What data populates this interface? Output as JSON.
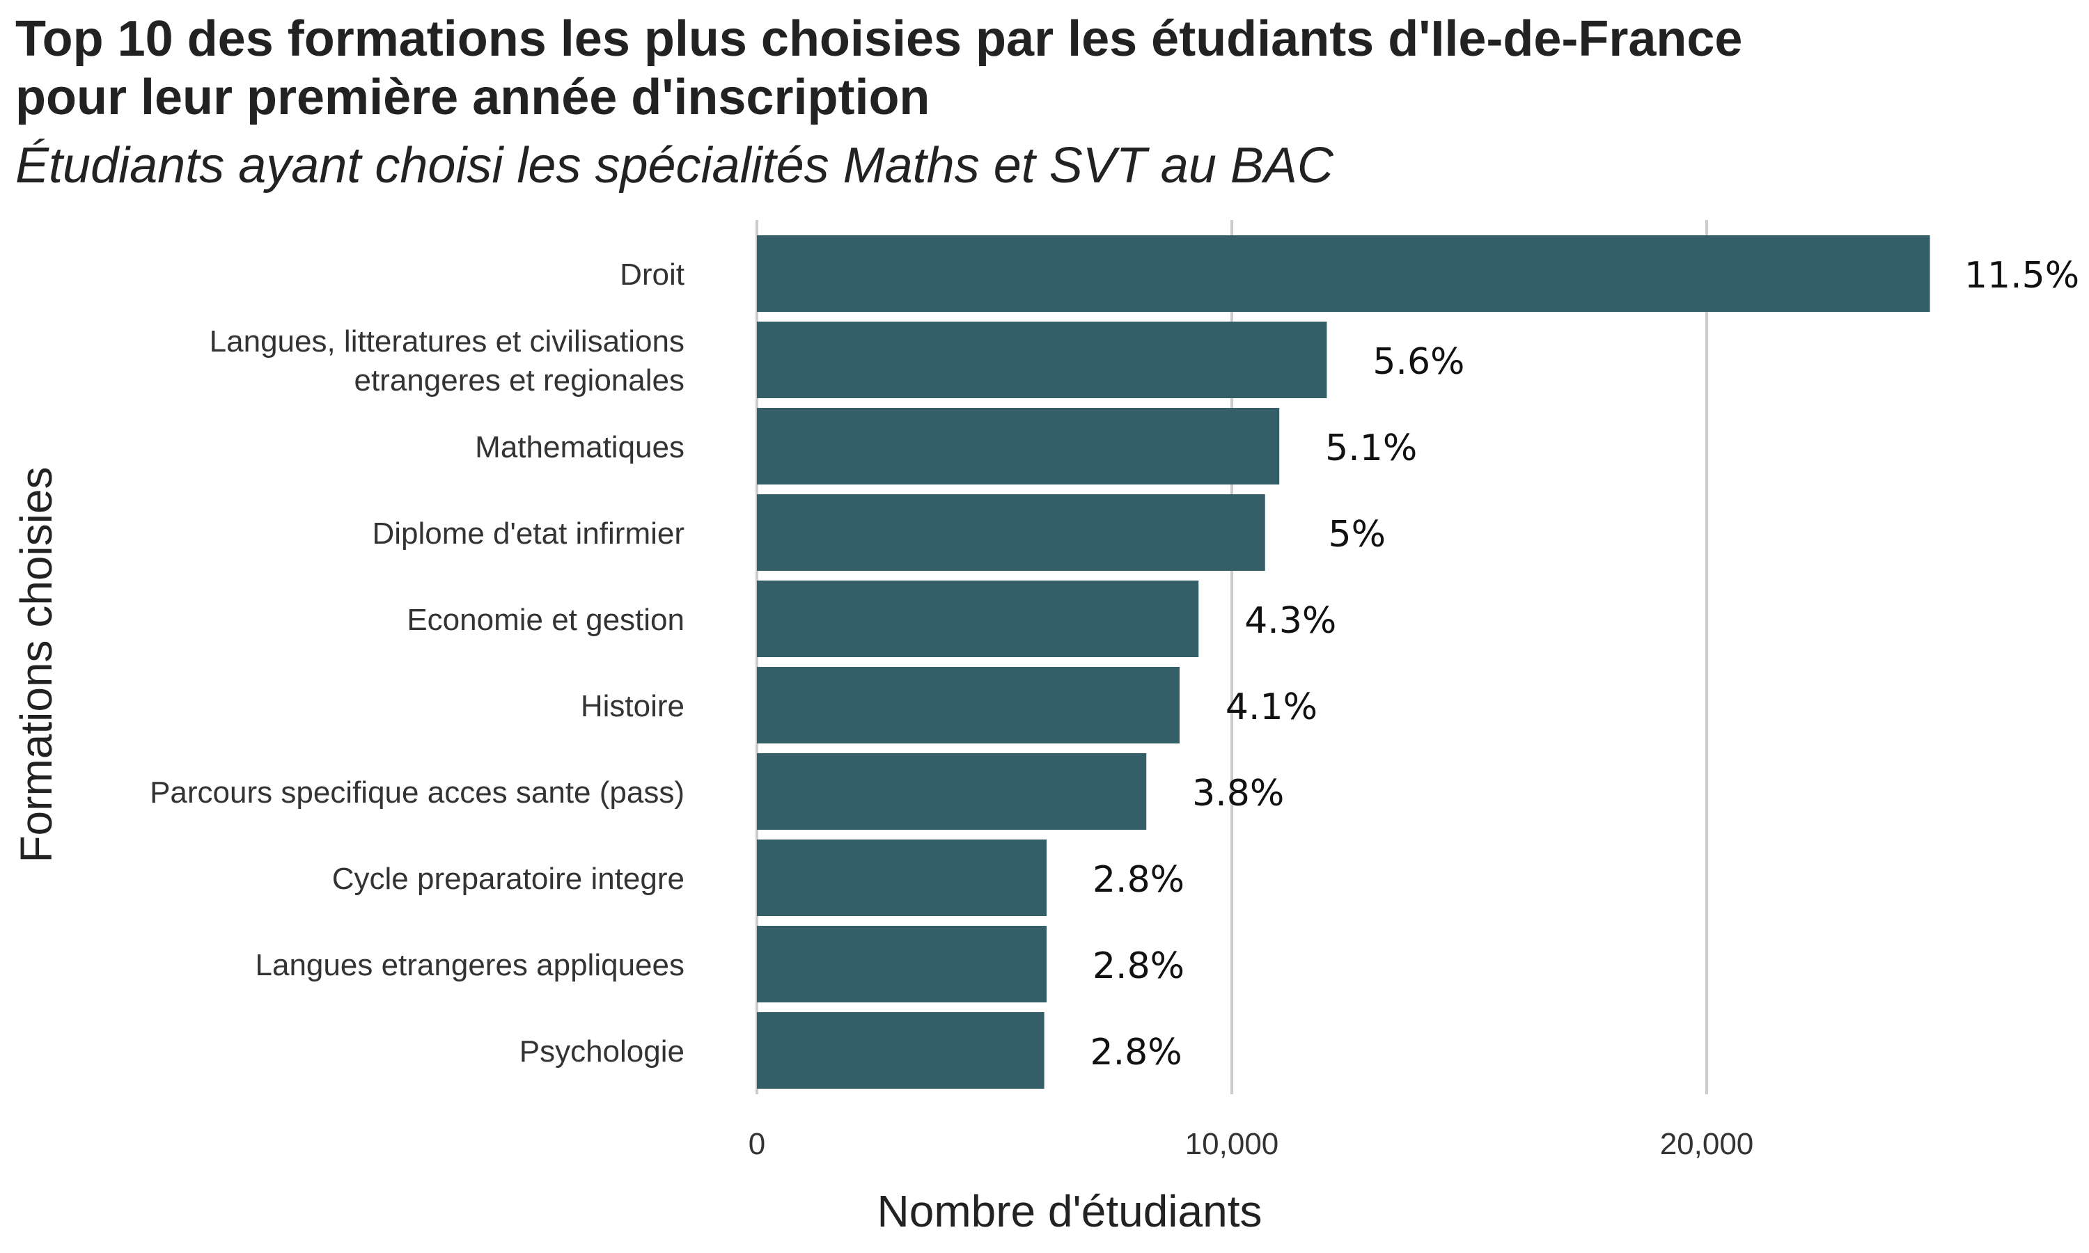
{
  "chart_data": {
    "type": "bar",
    "orientation": "horizontal",
    "title_lines": [
      "Top 10 des formations les plus choisies par les étudiants d'Ile-de-France",
      "pour leur première année d'inscription"
    ],
    "subtitle": "Étudiants ayant choisi les spécialités Maths et SVT au BAC",
    "xlabel": "Nombre d'étudiants",
    "ylabel": "Formations choisies",
    "xlim": [
      0,
      27000
    ],
    "x_ticks": [
      0,
      10000,
      20000
    ],
    "x_tick_labels": [
      "0",
      "10,000",
      "20,000"
    ],
    "grid": "vertical",
    "bar_color": "#355f68",
    "categories": [
      [
        "Droit"
      ],
      [
        "Langues, litteratures et civilisations",
        "etrangeres et regionales"
      ],
      [
        "Mathematiques"
      ],
      [
        "Diplome d'etat infirmier"
      ],
      [
        "Economie et gestion"
      ],
      [
        "Histoire"
      ],
      [
        "Parcours specifique acces sante (pass)"
      ],
      [
        "Cycle preparatoire integre"
      ],
      [
        "Langues etrangeres appliquees"
      ],
      [
        "Psychologie"
      ]
    ],
    "values": [
      24700,
      12000,
      11000,
      10700,
      9300,
      8900,
      8200,
      6100,
      6100,
      6050
    ],
    "data_labels": [
      "11.5%",
      "5.6%",
      "5.1%",
      "5%",
      "4.3%",
      "4.1%",
      "3.8%",
      "2.8%",
      "2.8%",
      "2.8%"
    ]
  }
}
